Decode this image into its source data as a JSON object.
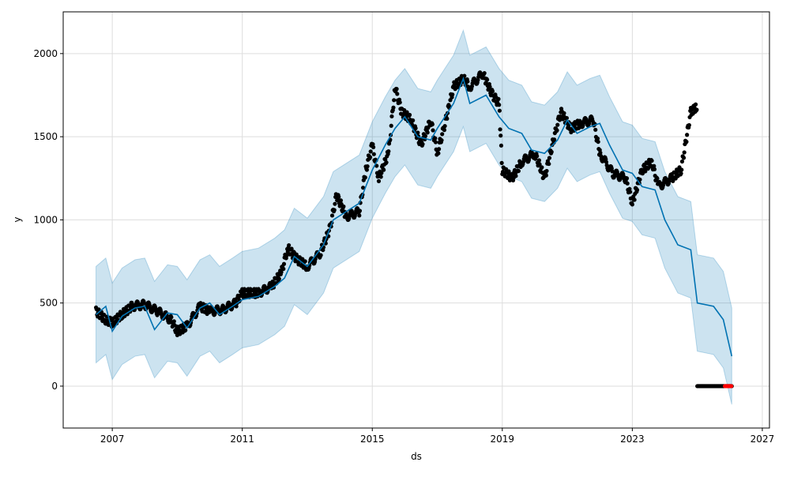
{
  "chart_data": {
    "type": "line",
    "title": "",
    "xlabel": "ds",
    "ylabel": "y",
    "xlim": [
      2005.49,
      2027.22
    ],
    "ylim": [
      -252,
      2251
    ],
    "x_ticks": [
      2007,
      2011,
      2015,
      2019,
      2023,
      2027
    ],
    "x_tick_labels": [
      "2007",
      "2011",
      "2015",
      "2019",
      "2023",
      "2027"
    ],
    "y_ticks": [
      0,
      500,
      1000,
      1500,
      2000
    ],
    "y_tick_labels": [
      "0",
      "500",
      "1000",
      "1500",
      "2000"
    ],
    "grid": true,
    "colors": {
      "forecast": "#0072B2",
      "interval": "#0072B2",
      "observed": "#000000",
      "highlight": "#ff0000"
    },
    "interval_halfwidth": 290,
    "forecast": [
      [
        2006.5,
        430
      ],
      [
        2006.8,
        480
      ],
      [
        2007.0,
        330
      ],
      [
        2007.3,
        420
      ],
      [
        2007.7,
        470
      ],
      [
        2008.0,
        480
      ],
      [
        2008.3,
        340
      ],
      [
        2008.7,
        440
      ],
      [
        2009.0,
        430
      ],
      [
        2009.3,
        350
      ],
      [
        2009.7,
        470
      ],
      [
        2010.0,
        500
      ],
      [
        2010.3,
        430
      ],
      [
        2010.7,
        480
      ],
      [
        2011.0,
        520
      ],
      [
        2011.5,
        540
      ],
      [
        2012.0,
        600
      ],
      [
        2012.3,
        650
      ],
      [
        2012.6,
        780
      ],
      [
        2013.0,
        720
      ],
      [
        2013.5,
        850
      ],
      [
        2013.8,
        1000
      ],
      [
        2014.2,
        1050
      ],
      [
        2014.6,
        1100
      ],
      [
        2015.0,
        1300
      ],
      [
        2015.4,
        1450
      ],
      [
        2015.7,
        1550
      ],
      [
        2016.0,
        1620
      ],
      [
        2016.4,
        1500
      ],
      [
        2016.8,
        1480
      ],
      [
        2017.0,
        1550
      ],
      [
        2017.5,
        1700
      ],
      [
        2017.8,
        1850
      ],
      [
        2018.0,
        1700
      ],
      [
        2018.5,
        1750
      ],
      [
        2018.9,
        1620
      ],
      [
        2019.2,
        1550
      ],
      [
        2019.6,
        1520
      ],
      [
        2019.9,
        1420
      ],
      [
        2020.3,
        1400
      ],
      [
        2020.7,
        1480
      ],
      [
        2021.0,
        1600
      ],
      [
        2021.3,
        1520
      ],
      [
        2021.7,
        1560
      ],
      [
        2022.0,
        1580
      ],
      [
        2022.3,
        1450
      ],
      [
        2022.7,
        1300
      ],
      [
        2023.0,
        1280
      ],
      [
        2023.3,
        1200
      ],
      [
        2023.7,
        1180
      ],
      [
        2024.0,
        1000
      ],
      [
        2024.4,
        850
      ],
      [
        2024.8,
        820
      ],
      [
        2025.0,
        500
      ],
      [
        2025.5,
        480
      ],
      [
        2025.8,
        400
      ],
      [
        2026.06,
        180
      ]
    ],
    "observed": [
      [
        2006.5,
        450
      ],
      [
        2006.8,
        400
      ],
      [
        2007.0,
        380
      ],
      [
        2007.3,
        430
      ],
      [
        2007.6,
        480
      ],
      [
        2008.0,
        490
      ],
      [
        2008.4,
        450
      ],
      [
        2008.8,
        400
      ],
      [
        2009.0,
        330
      ],
      [
        2009.3,
        360
      ],
      [
        2009.7,
        480
      ],
      [
        2010.0,
        450
      ],
      [
        2010.4,
        460
      ],
      [
        2010.8,
        500
      ],
      [
        2011.0,
        560
      ],
      [
        2011.5,
        560
      ],
      [
        2011.9,
        600
      ],
      [
        2012.2,
        680
      ],
      [
        2012.4,
        830
      ],
      [
        2012.7,
        760
      ],
      [
        2013.0,
        720
      ],
      [
        2013.4,
        800
      ],
      [
        2013.7,
        950
      ],
      [
        2013.9,
        1150
      ],
      [
        2014.2,
        1020
      ],
      [
        2014.6,
        1050
      ],
      [
        2014.8,
        1300
      ],
      [
        2015.0,
        1450
      ],
      [
        2015.2,
        1250
      ],
      [
        2015.5,
        1400
      ],
      [
        2015.7,
        1800
      ],
      [
        2015.9,
        1650
      ],
      [
        2016.2,
        1600
      ],
      [
        2016.5,
        1450
      ],
      [
        2016.8,
        1600
      ],
      [
        2017.0,
        1400
      ],
      [
        2017.2,
        1550
      ],
      [
        2017.5,
        1800
      ],
      [
        2017.8,
        1850
      ],
      [
        2018.0,
        1800
      ],
      [
        2018.4,
        1880
      ],
      [
        2018.7,
        1750
      ],
      [
        2018.9,
        1700
      ],
      [
        2019.0,
        1300
      ],
      [
        2019.3,
        1250
      ],
      [
        2019.6,
        1350
      ],
      [
        2020.0,
        1400
      ],
      [
        2020.3,
        1250
      ],
      [
        2020.6,
        1500
      ],
      [
        2020.8,
        1650
      ],
      [
        2021.1,
        1550
      ],
      [
        2021.4,
        1580
      ],
      [
        2021.8,
        1600
      ],
      [
        2022.0,
        1400
      ],
      [
        2022.4,
        1280
      ],
      [
        2022.8,
        1250
      ],
      [
        2023.0,
        1100
      ],
      [
        2023.3,
        1300
      ],
      [
        2023.6,
        1350
      ],
      [
        2023.8,
        1200
      ],
      [
        2024.2,
        1250
      ],
      [
        2024.5,
        1300
      ],
      [
        2024.8,
        1650
      ],
      [
        2024.9,
        1670
      ],
      [
        2025.0,
        1670
      ]
    ],
    "observed_zero": {
      "from": 2025.0,
      "to": 2026.06,
      "value": 0
    },
    "highlighted_zero": {
      "from": 2025.85,
      "to": 2026.06,
      "value": 0
    }
  }
}
